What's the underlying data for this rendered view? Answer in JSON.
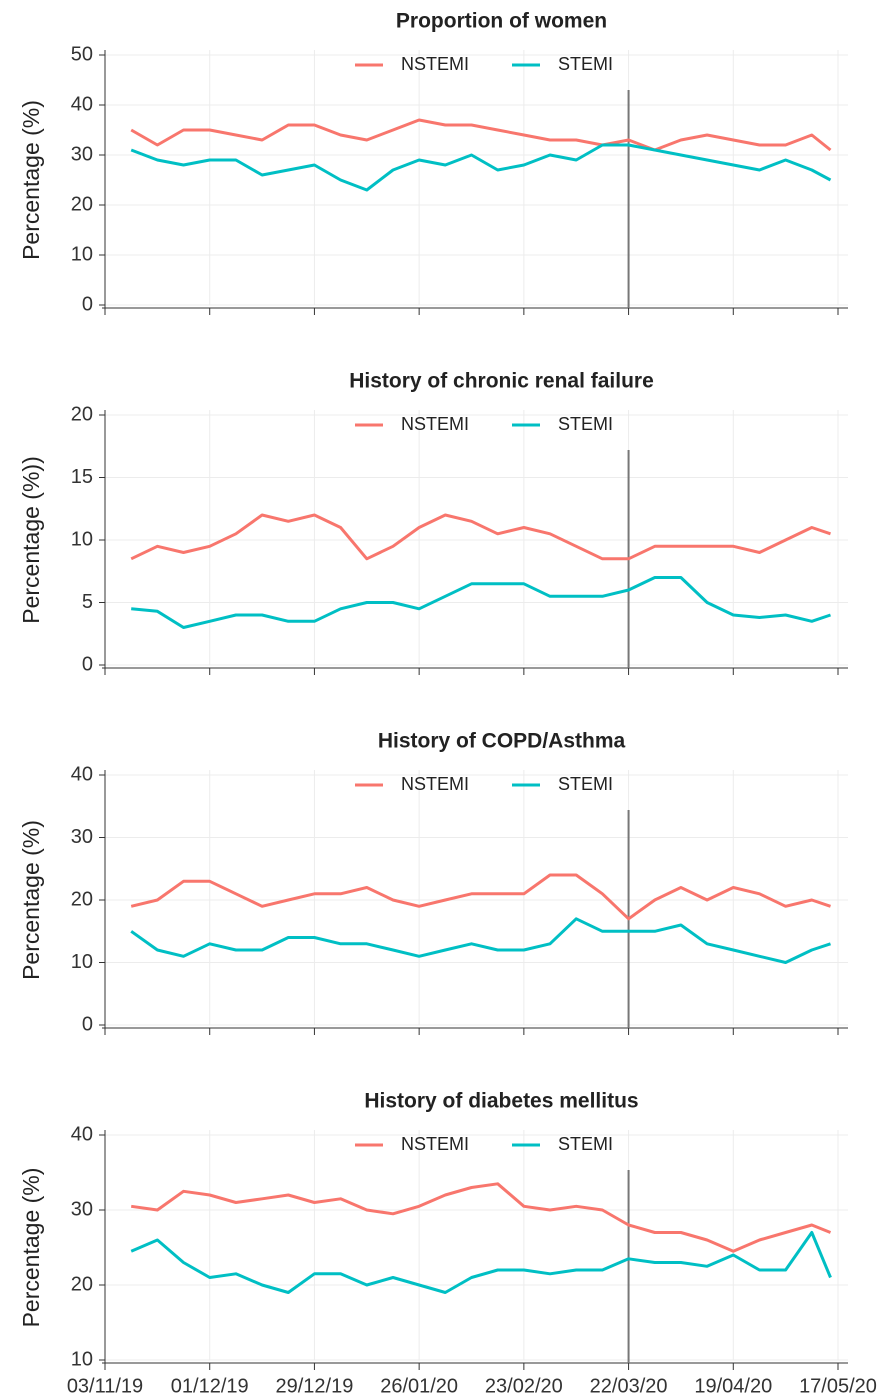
{
  "chart_data": [
    {
      "type": "line",
      "title": "Proportion of women",
      "y_label": "Percentage (%)",
      "x": [
        "10/11/19",
        "17/11/19",
        "24/11/19",
        "01/12/19",
        "08/12/19",
        "15/12/19",
        "22/12/19",
        "29/12/19",
        "05/01/20",
        "12/01/20",
        "19/01/20",
        "26/01/20",
        "02/02/20",
        "09/02/20",
        "16/02/20",
        "23/02/20",
        "01/03/20",
        "08/03/20",
        "15/03/20",
        "22/03/20",
        "29/03/20",
        "05/04/20",
        "12/04/20",
        "19/04/20",
        "26/04/20",
        "03/05/20",
        "10/05/20",
        "15/05/20"
      ],
      "series": [
        {
          "name": "NSTEMI",
          "color": "#F8766D",
          "values": [
            35,
            32,
            35,
            35,
            34,
            33,
            36,
            36,
            34,
            33,
            35,
            37,
            36,
            36,
            35,
            34,
            33,
            33,
            32,
            33,
            31,
            33,
            34,
            33,
            32,
            32,
            34,
            31
          ]
        },
        {
          "name": "STEMI",
          "color": "#00BFC4",
          "values": [
            31,
            29,
            28,
            29,
            29,
            26,
            27,
            28,
            25,
            23,
            27,
            29,
            28,
            30,
            27,
            28,
            30,
            29,
            32,
            32,
            31,
            30,
            29,
            28,
            27,
            29,
            27,
            25
          ]
        }
      ],
      "ylim": [
        0,
        50
      ],
      "yticks": [
        0,
        10,
        20,
        30,
        40,
        50
      ],
      "xlim": [
        "03/11/19",
        "17/05/20"
      ],
      "vertical_line": "22/03/20",
      "grid": true
    },
    {
      "type": "line",
      "title": "History of chronic renal failure",
      "y_label": "Percentage (%))",
      "x": [
        "10/11/19",
        "17/11/19",
        "24/11/19",
        "01/12/19",
        "08/12/19",
        "15/12/19",
        "22/12/19",
        "29/12/19",
        "05/01/20",
        "12/01/20",
        "19/01/20",
        "26/01/20",
        "02/02/20",
        "09/02/20",
        "16/02/20",
        "23/02/20",
        "01/03/20",
        "08/03/20",
        "15/03/20",
        "22/03/20",
        "29/03/20",
        "05/04/20",
        "12/04/20",
        "19/04/20",
        "26/04/20",
        "03/05/20",
        "10/05/20",
        "15/05/20"
      ],
      "series": [
        {
          "name": "NSTEMI",
          "color": "#F8766D",
          "values": [
            8.5,
            9.5,
            9,
            9.5,
            10.5,
            12,
            11.5,
            12,
            11,
            8.5,
            9.5,
            11,
            12,
            11.5,
            10.5,
            11,
            10.5,
            9.5,
            8.5,
            8.5,
            9.5,
            9.5,
            9.5,
            9.5,
            9,
            10,
            11,
            10.5
          ]
        },
        {
          "name": "STEMI",
          "color": "#00BFC4",
          "values": [
            4.5,
            4.3,
            3,
            3.5,
            4,
            4,
            3.5,
            3.5,
            4.5,
            5,
            5,
            4.5,
            5.5,
            6.5,
            6.5,
            6.5,
            5.5,
            5.5,
            5.5,
            6,
            7,
            7,
            5,
            4,
            3.8,
            4,
            3.5,
            4
          ]
        }
      ],
      "ylim": [
        0,
        20
      ],
      "yticks": [
        0,
        5,
        10,
        15,
        20
      ],
      "xlim": [
        "03/11/19",
        "17/05/20"
      ],
      "vertical_line": "22/03/20",
      "grid": true
    },
    {
      "type": "line",
      "title": "History of COPD/Asthma",
      "y_label": "Percentage (%)",
      "x": [
        "10/11/19",
        "17/11/19",
        "24/11/19",
        "01/12/19",
        "08/12/19",
        "15/12/19",
        "22/12/19",
        "29/12/19",
        "05/01/20",
        "12/01/20",
        "19/01/20",
        "26/01/20",
        "02/02/20",
        "09/02/20",
        "16/02/20",
        "23/02/20",
        "01/03/20",
        "08/03/20",
        "15/03/20",
        "22/03/20",
        "29/03/20",
        "05/04/20",
        "12/04/20",
        "19/04/20",
        "26/04/20",
        "03/05/20",
        "10/05/20",
        "15/05/20"
      ],
      "series": [
        {
          "name": "NSTEMI",
          "color": "#F8766D",
          "values": [
            19,
            20,
            23,
            23,
            21,
            19,
            20,
            21,
            21,
            22,
            20,
            19,
            20,
            21,
            21,
            21,
            24,
            24,
            21,
            17,
            20,
            22,
            20,
            22,
            21,
            19,
            20,
            19
          ]
        },
        {
          "name": "STEMI",
          "color": "#00BFC4",
          "values": [
            15,
            12,
            11,
            13,
            12,
            12,
            14,
            14,
            13,
            13,
            12,
            11,
            12,
            13,
            12,
            12,
            13,
            17,
            15,
            15,
            15,
            16,
            13,
            12,
            11,
            10,
            12,
            13
          ]
        }
      ],
      "ylim": [
        0,
        40
      ],
      "yticks": [
        0,
        10,
        20,
        30,
        40
      ],
      "xlim": [
        "03/11/19",
        "17/05/20"
      ],
      "vertical_line": "22/03/20",
      "grid": true
    },
    {
      "type": "line",
      "title": "History of diabetes mellitus",
      "y_label": "Percentage (%)",
      "x": [
        "10/11/19",
        "17/11/19",
        "24/11/19",
        "01/12/19",
        "08/12/19",
        "15/12/19",
        "22/12/19",
        "29/12/19",
        "05/01/20",
        "12/01/20",
        "19/01/20",
        "26/01/20",
        "02/02/20",
        "09/02/20",
        "16/02/20",
        "23/02/20",
        "01/03/20",
        "08/03/20",
        "15/03/20",
        "22/03/20",
        "29/03/20",
        "05/04/20",
        "12/04/20",
        "19/04/20",
        "26/04/20",
        "03/05/20",
        "10/05/20",
        "15/05/20"
      ],
      "series": [
        {
          "name": "NSTEMI",
          "color": "#F8766D",
          "values": [
            30.5,
            30,
            32.5,
            32,
            31,
            31.5,
            32,
            31,
            31.5,
            30,
            29.5,
            30.5,
            32,
            33,
            33.5,
            30.5,
            30,
            30.5,
            30,
            28,
            27,
            27,
            26,
            24.5,
            26,
            27,
            28,
            27
          ]
        },
        {
          "name": "STEMI",
          "color": "#00BFC4",
          "values": [
            24.5,
            26,
            23,
            21,
            21.5,
            20,
            19,
            21.5,
            21.5,
            20,
            21,
            20,
            19,
            21,
            22,
            22,
            21.5,
            22,
            22,
            23.5,
            23,
            23,
            22.5,
            24,
            22,
            22,
            27,
            21
          ]
        }
      ],
      "ylim": [
        10,
        40
      ],
      "yticks": [
        10,
        20,
        30,
        40
      ],
      "xlim": [
        "03/11/19",
        "17/05/20"
      ],
      "vertical_line": "22/03/20",
      "grid": true,
      "xticks": [
        "03/11/19",
        "01/12/19",
        "29/12/19",
        "26/01/20",
        "23/02/20",
        "22/03/20",
        "19/04/20",
        "17/05/20"
      ]
    }
  ]
}
